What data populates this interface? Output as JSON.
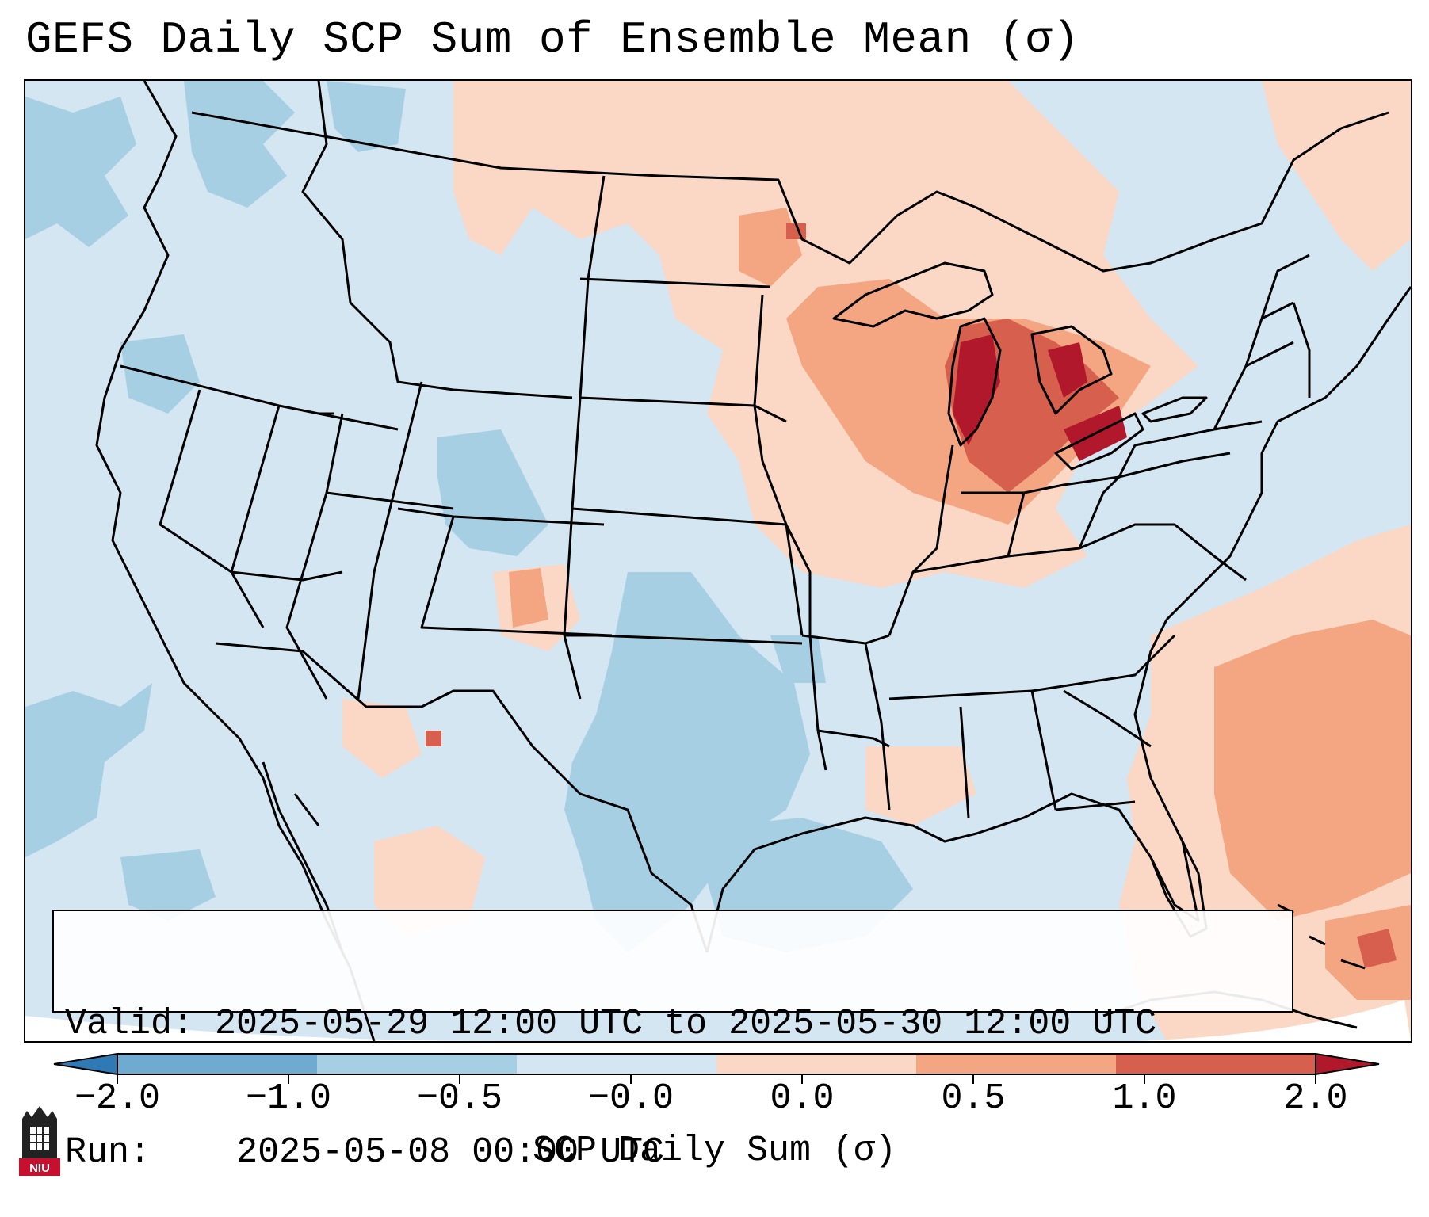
{
  "title": "GEFS Daily SCP Sum of Ensemble Mean (σ)",
  "info": {
    "valid_label": "Valid:",
    "valid_value": "2025-05-29 12:00 UTC to 2025-05-30 12:00 UTC",
    "run_label": "Run:",
    "run_value": "2025-05-08 00:00 UTC"
  },
  "colorbar": {
    "label": "SCP Daily Sum (σ)",
    "tick_labels": [
      "−2.0",
      "−1.0",
      "−0.5",
      "−0.0",
      "0.0",
      "0.5",
      "1.0",
      "2.0"
    ],
    "bin_colors": [
      "#2f79b5",
      "#6fabd1",
      "#a7cfe4",
      "#d3e6f1",
      "#fbd8c6",
      "#f4a582",
      "#d6604d",
      "#b2182b"
    ],
    "extend": "both"
  },
  "colors": {
    "map_background": "#d3e6f1",
    "neg_moderate": "#a7cfe4",
    "neg_strong": "#6fabd1",
    "pos_light": "#fbd8c6",
    "pos_moderate": "#f4a582",
    "pos_strong": "#d6604d",
    "pos_max": "#b2182b",
    "borders": "#000000"
  },
  "logo": {
    "text": "NIU"
  }
}
